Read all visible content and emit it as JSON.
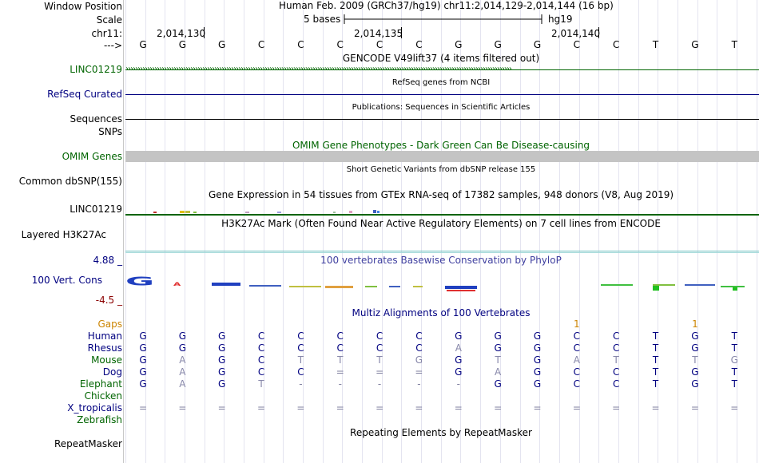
{
  "labels": {
    "window_position": "Window Position",
    "scale": "Scale",
    "chrom": "chr11:",
    "strand": "--->",
    "linc1": "LINC01219",
    "refseq": "RefSeq Curated",
    "sequences": "Sequences",
    "snps": "SNPs",
    "omim": "OMIM Genes",
    "dbsnp": "Common dbSNP(155)",
    "linc2": "LINC01219",
    "h3k27": "Layered H3K27Ac",
    "vert_cons": "100 Vert. Cons",
    "cons_max": "4.88 _",
    "cons_min": "-4.5 _",
    "gaps": "Gaps",
    "repeatmasker": "RepeatMasker"
  },
  "header": {
    "position_text": "Human Feb. 2009 (GRCh37/hg19)    chr11:2,014,129-2,014,144 (16 bp)",
    "scale_text": "5 bases",
    "assembly": "hg19",
    "ticks": [
      "2,014,130",
      "2,014,135",
      "2,014,140"
    ]
  },
  "tracks": {
    "gencode_title": "GENCODE V49lift37 (4 items filtered out)",
    "refseq_title": "RefSeq genes from NCBI",
    "pubs_title": "Publications: Sequences in Scientific Articles",
    "omim_title": "OMIM Gene Phenotypes - Dark Green Can Be Disease-causing",
    "dbsnp_title": "Short Genetic Variants from dbSNP release 155",
    "gtex_title": "Gene Expression in 54 tissues from GTEx RNA-seq of 17382 samples, 948 donors (V8, Aug 2019)",
    "h3k27_title": "H3K27Ac Mark (Often Found Near Active Regulatory Elements) on 7 cell lines from ENCODE",
    "phylop_title": "100 vertebrates Basewise Conservation by PhyloP",
    "multiz_title": "Multiz Alignments of 100 Vertebrates",
    "rmsk_title": "Repeating Elements by RepeatMasker"
  },
  "sequence": [
    "G",
    "G",
    "G",
    "C",
    "C",
    "C",
    "C",
    "C",
    "G",
    "G",
    "G",
    "C",
    "C",
    "T",
    "G",
    "T"
  ],
  "gaps": [
    "",
    "",
    "",
    "",
    "",
    "",
    "",
    "",
    "",
    "",
    "",
    "1",
    "",
    "",
    "1",
    ""
  ],
  "alignment": [
    {
      "species": "Human",
      "color": "#000080",
      "bases": [
        "G",
        "G",
        "G",
        "C",
        "C",
        "C",
        "C",
        "C",
        "G",
        "G",
        "G",
        "C",
        "C",
        "T",
        "G",
        "T"
      ]
    },
    {
      "species": "Rhesus",
      "color": "#000080",
      "bases": [
        "G",
        "G",
        "G",
        "C",
        "C",
        "C",
        "C",
        "C",
        "A",
        "G",
        "G",
        "C",
        "C",
        "T",
        "G",
        "T"
      ]
    },
    {
      "species": "Mouse",
      "color": "#006400",
      "bases": [
        "G",
        "A",
        "G",
        "C",
        "T",
        "T",
        "T",
        "G",
        "G",
        "T",
        "G",
        "A",
        "T",
        "T",
        "T",
        "G"
      ]
    },
    {
      "species": "Dog",
      "color": "#000080",
      "bases": [
        "G",
        "A",
        "G",
        "C",
        "C",
        "=",
        "=",
        "=",
        "G",
        "A",
        "G",
        "C",
        "C",
        "T",
        "G",
        "T"
      ]
    },
    {
      "species": "Elephant",
      "color": "#006400",
      "bases": [
        "G",
        "A",
        "G",
        "T",
        "-",
        "-",
        "-",
        "-",
        "-",
        "G",
        "G",
        "C",
        "C",
        "T",
        "G",
        "T"
      ]
    },
    {
      "species": "Chicken",
      "color": "#006400",
      "bases": [
        "",
        "",
        "",
        "",
        "",
        "",
        "",
        "",
        "",
        "",
        "",
        "",
        "",
        "",
        "",
        ""
      ]
    },
    {
      "species": "X_tropicalis",
      "color": "#000080",
      "bases": [
        "=",
        "=",
        "=",
        "=",
        "=",
        "=",
        "=",
        "=",
        "=",
        "=",
        "=",
        "=",
        "=",
        "=",
        "=",
        "="
      ]
    },
    {
      "species": "Zebrafish",
      "color": "#006400",
      "bases": [
        "",
        "",
        "",
        "",
        "",
        "",
        "",
        "",
        "",
        "",
        "",
        "",
        "",
        "",
        "",
        ""
      ]
    }
  ],
  "colors": {
    "green_label": "#006400",
    "blue_label": "#000080",
    "gaps_label": "#cc8400",
    "cons_title": "#4040a0",
    "omim_title": "#006400"
  }
}
